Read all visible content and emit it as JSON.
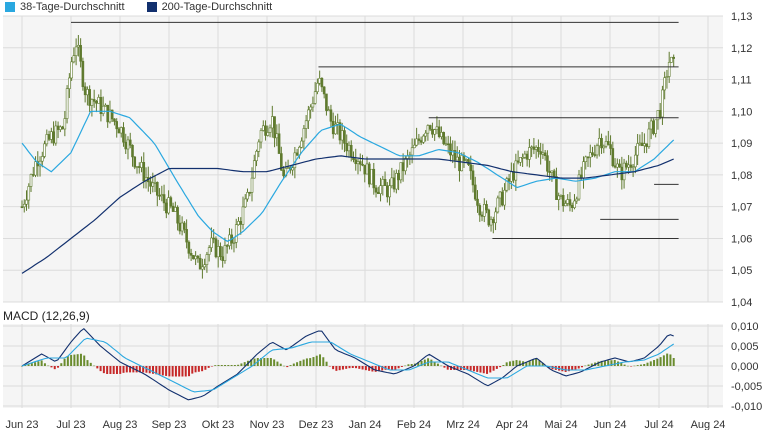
{
  "legend": [
    {
      "name": "38-Tage-Durchschnitt",
      "color": "#2aa8e0"
    },
    {
      "name": "200-Tage-Durchschnitt",
      "color": "#12306e"
    }
  ],
  "macd_title": "MACD (12,26,9)",
  "colors": {
    "bg": "#f5f5f5",
    "grid": "#dcdcdc",
    "candle": "#5f7a2e",
    "ma38": "#2aa8e0",
    "ma200": "#12306e",
    "macd_pos": "#6a8c2e",
    "macd_neg": "#c62828",
    "hline": "#333333"
  },
  "chart_data": [
    {
      "type": "line",
      "x_labels": [
        "Jun 23",
        "Jul 23",
        "Aug 23",
        "Sep 23",
        "Okt 23",
        "Nov 23",
        "Dez 23",
        "Jan 24",
        "Feb 24",
        "Mrz 24",
        "Apr 24",
        "Mai 24",
        "Jun 24",
        "Jul 24",
        "Aug 24"
      ],
      "y_ticks": [
        "1,04",
        "1,05",
        "1,06",
        "1,07",
        "1,08",
        "1,09",
        "1,10",
        "1,11",
        "1,12",
        "1,13"
      ],
      "ylim": [
        1.04,
        1.13
      ],
      "price_anchors": [
        {
          "m": 0.0,
          "v": 1.07
        },
        {
          "m": 0.3,
          "v": 1.085
        },
        {
          "m": 0.6,
          "v": 1.092
        },
        {
          "m": 0.85,
          "v": 1.095
        },
        {
          "m": 1.0,
          "v": 1.115
        },
        {
          "m": 1.1,
          "v": 1.122
        },
        {
          "m": 1.3,
          "v": 1.106
        },
        {
          "m": 1.7,
          "v": 1.1
        },
        {
          "m": 2.0,
          "v": 1.095
        },
        {
          "m": 2.3,
          "v": 1.085
        },
        {
          "m": 2.7,
          "v": 1.075
        },
        {
          "m": 3.1,
          "v": 1.068
        },
        {
          "m": 3.4,
          "v": 1.058
        },
        {
          "m": 3.6,
          "v": 1.051
        },
        {
          "m": 3.85,
          "v": 1.058
        },
        {
          "m": 4.1,
          "v": 1.055
        },
        {
          "m": 4.3,
          "v": 1.06
        },
        {
          "m": 4.6,
          "v": 1.072
        },
        {
          "m": 4.85,
          "v": 1.093
        },
        {
          "m": 5.1,
          "v": 1.098
        },
        {
          "m": 5.35,
          "v": 1.078
        },
        {
          "m": 5.6,
          "v": 1.088
        },
        {
          "m": 5.9,
          "v": 1.102
        },
        {
          "m": 6.05,
          "v": 1.11
        },
        {
          "m": 6.3,
          "v": 1.097
        },
        {
          "m": 6.6,
          "v": 1.09
        },
        {
          "m": 6.9,
          "v": 1.085
        },
        {
          "m": 7.2,
          "v": 1.077
        },
        {
          "m": 7.5,
          "v": 1.075
        },
        {
          "m": 7.8,
          "v": 1.083
        },
        {
          "m": 8.0,
          "v": 1.088
        },
        {
          "m": 8.3,
          "v": 1.097
        },
        {
          "m": 8.6,
          "v": 1.09
        },
        {
          "m": 8.9,
          "v": 1.084
        },
        {
          "m": 9.1,
          "v": 1.082
        },
        {
          "m": 9.35,
          "v": 1.07
        },
        {
          "m": 9.55,
          "v": 1.066
        },
        {
          "m": 9.8,
          "v": 1.073
        },
        {
          "m": 10.0,
          "v": 1.08
        },
        {
          "m": 10.3,
          "v": 1.087
        },
        {
          "m": 10.6,
          "v": 1.089
        },
        {
          "m": 10.85,
          "v": 1.077
        },
        {
          "m": 11.0,
          "v": 1.072
        },
        {
          "m": 11.2,
          "v": 1.07
        },
        {
          "m": 11.5,
          "v": 1.083
        },
        {
          "m": 11.8,
          "v": 1.092
        },
        {
          "m": 12.0,
          "v": 1.088
        },
        {
          "m": 12.2,
          "v": 1.08
        },
        {
          "m": 12.45,
          "v": 1.085
        },
        {
          "m": 12.7,
          "v": 1.09
        },
        {
          "m": 12.9,
          "v": 1.096
        },
        {
          "m": 13.05,
          "v": 1.102
        },
        {
          "m": 13.2,
          "v": 1.116
        },
        {
          "m": 13.3,
          "v": 1.114
        }
      ],
      "ma38_anchors": [
        {
          "m": 0.0,
          "v": 1.09
        },
        {
          "m": 0.3,
          "v": 1.084
        },
        {
          "m": 0.6,
          "v": 1.081
        },
        {
          "m": 1.0,
          "v": 1.087
        },
        {
          "m": 1.4,
          "v": 1.1
        },
        {
          "m": 1.8,
          "v": 1.1
        },
        {
          "m": 2.2,
          "v": 1.098
        },
        {
          "m": 2.7,
          "v": 1.09
        },
        {
          "m": 3.2,
          "v": 1.077
        },
        {
          "m": 3.6,
          "v": 1.067
        },
        {
          "m": 3.9,
          "v": 1.062
        },
        {
          "m": 4.2,
          "v": 1.059
        },
        {
          "m": 4.5,
          "v": 1.062
        },
        {
          "m": 4.9,
          "v": 1.068
        },
        {
          "m": 5.3,
          "v": 1.078
        },
        {
          "m": 5.7,
          "v": 1.087
        },
        {
          "m": 6.1,
          "v": 1.094
        },
        {
          "m": 6.5,
          "v": 1.096
        },
        {
          "m": 6.9,
          "v": 1.092
        },
        {
          "m": 7.3,
          "v": 1.089
        },
        {
          "m": 7.7,
          "v": 1.086
        },
        {
          "m": 8.1,
          "v": 1.086
        },
        {
          "m": 8.5,
          "v": 1.088
        },
        {
          "m": 8.9,
          "v": 1.087
        },
        {
          "m": 9.3,
          "v": 1.084
        },
        {
          "m": 9.7,
          "v": 1.08
        },
        {
          "m": 10.1,
          "v": 1.076
        },
        {
          "m": 10.5,
          "v": 1.078
        },
        {
          "m": 10.9,
          "v": 1.079
        },
        {
          "m": 11.3,
          "v": 1.078
        },
        {
          "m": 11.7,
          "v": 1.079
        },
        {
          "m": 12.1,
          "v": 1.081
        },
        {
          "m": 12.5,
          "v": 1.081
        },
        {
          "m": 12.9,
          "v": 1.085
        },
        {
          "m": 13.3,
          "v": 1.091
        }
      ],
      "ma200_anchors": [
        {
          "m": 0.0,
          "v": 1.049
        },
        {
          "m": 0.5,
          "v": 1.054
        },
        {
          "m": 1.0,
          "v": 1.06
        },
        {
          "m": 1.5,
          "v": 1.066
        },
        {
          "m": 2.0,
          "v": 1.073
        },
        {
          "m": 2.5,
          "v": 1.078
        },
        {
          "m": 3.0,
          "v": 1.082
        },
        {
          "m": 3.5,
          "v": 1.082
        },
        {
          "m": 4.0,
          "v": 1.082
        },
        {
          "m": 4.5,
          "v": 1.081
        },
        {
          "m": 5.0,
          "v": 1.081
        },
        {
          "m": 5.5,
          "v": 1.083
        },
        {
          "m": 6.0,
          "v": 1.085
        },
        {
          "m": 6.5,
          "v": 1.086
        },
        {
          "m": 7.0,
          "v": 1.085
        },
        {
          "m": 7.5,
          "v": 1.085
        },
        {
          "m": 8.0,
          "v": 1.085
        },
        {
          "m": 8.5,
          "v": 1.085
        },
        {
          "m": 9.0,
          "v": 1.084
        },
        {
          "m": 9.5,
          "v": 1.083
        },
        {
          "m": 10.0,
          "v": 1.081
        },
        {
          "m": 10.5,
          "v": 1.08
        },
        {
          "m": 11.0,
          "v": 1.079
        },
        {
          "m": 11.5,
          "v": 1.079
        },
        {
          "m": 12.0,
          "v": 1.08
        },
        {
          "m": 12.5,
          "v": 1.081
        },
        {
          "m": 13.0,
          "v": 1.083
        },
        {
          "m": 13.3,
          "v": 1.085
        }
      ],
      "horizontal_lines": [
        {
          "from": 1.0,
          "to": 13.4,
          "v": 1.128
        },
        {
          "from": 6.05,
          "to": 13.4,
          "v": 1.114
        },
        {
          "from": 8.3,
          "to": 13.4,
          "v": 1.098
        },
        {
          "from": 12.9,
          "to": 13.4,
          "v": 1.077
        },
        {
          "from": 11.8,
          "to": 13.4,
          "v": 1.066
        },
        {
          "from": 9.6,
          "to": 13.4,
          "v": 1.06
        }
      ]
    },
    {
      "type": "line",
      "title": "MACD (12,26,9)",
      "y_ticks": [
        "-0,010",
        "-0,005",
        "0,000",
        "0,005",
        "0,010"
      ],
      "ylim": [
        -0.0105,
        0.0105
      ],
      "macd_anchors": [
        {
          "m": 0.0,
          "v": 0.0
        },
        {
          "m": 0.4,
          "v": 0.003
        },
        {
          "m": 0.7,
          "v": 0.001
        },
        {
          "m": 1.0,
          "v": 0.006
        },
        {
          "m": 1.25,
          "v": 0.0095
        },
        {
          "m": 1.6,
          "v": 0.005
        },
        {
          "m": 2.0,
          "v": 0.001
        },
        {
          "m": 2.5,
          "v": -0.002
        },
        {
          "m": 3.0,
          "v": -0.006
        },
        {
          "m": 3.4,
          "v": -0.0085
        },
        {
          "m": 3.7,
          "v": -0.0075
        },
        {
          "m": 4.0,
          "v": -0.005
        },
        {
          "m": 4.4,
          "v": -0.002
        },
        {
          "m": 4.8,
          "v": 0.003
        },
        {
          "m": 5.1,
          "v": 0.006
        },
        {
          "m": 5.4,
          "v": 0.004
        },
        {
          "m": 5.8,
          "v": 0.0075
        },
        {
          "m": 6.1,
          "v": 0.009
        },
        {
          "m": 6.4,
          "v": 0.004
        },
        {
          "m": 6.8,
          "v": 0.002
        },
        {
          "m": 7.2,
          "v": -0.001
        },
        {
          "m": 7.6,
          "v": -0.002
        },
        {
          "m": 8.0,
          "v": 0.0
        },
        {
          "m": 8.3,
          "v": 0.003
        },
        {
          "m": 8.7,
          "v": 0.0
        },
        {
          "m": 9.1,
          "v": -0.002
        },
        {
          "m": 9.5,
          "v": -0.005
        },
        {
          "m": 9.8,
          "v": -0.003
        },
        {
          "m": 10.1,
          "v": 0.0
        },
        {
          "m": 10.5,
          "v": 0.002
        },
        {
          "m": 10.8,
          "v": -0.001
        },
        {
          "m": 11.1,
          "v": -0.0025
        },
        {
          "m": 11.4,
          "v": -0.0015
        },
        {
          "m": 11.8,
          "v": 0.001
        },
        {
          "m": 12.1,
          "v": 0.002
        },
        {
          "m": 12.4,
          "v": 0.001
        },
        {
          "m": 12.7,
          "v": 0.002
        },
        {
          "m": 13.0,
          "v": 0.005
        },
        {
          "m": 13.2,
          "v": 0.008
        },
        {
          "m": 13.3,
          "v": 0.0075
        }
      ],
      "signal_anchors": [
        {
          "m": 0.0,
          "v": 0.0
        },
        {
          "m": 0.5,
          "v": 0.002
        },
        {
          "m": 0.9,
          "v": 0.002
        },
        {
          "m": 1.3,
          "v": 0.007
        },
        {
          "m": 1.7,
          "v": 0.006
        },
        {
          "m": 2.1,
          "v": 0.002
        },
        {
          "m": 2.6,
          "v": -0.001
        },
        {
          "m": 3.1,
          "v": -0.004
        },
        {
          "m": 3.5,
          "v": -0.0065
        },
        {
          "m": 3.9,
          "v": -0.006
        },
        {
          "m": 4.3,
          "v": -0.003
        },
        {
          "m": 4.7,
          "v": 0.0
        },
        {
          "m": 5.1,
          "v": 0.004
        },
        {
          "m": 5.5,
          "v": 0.0045
        },
        {
          "m": 5.9,
          "v": 0.006
        },
        {
          "m": 6.3,
          "v": 0.006
        },
        {
          "m": 6.7,
          "v": 0.003
        },
        {
          "m": 7.1,
          "v": 0.001
        },
        {
          "m": 7.5,
          "v": -0.001
        },
        {
          "m": 7.9,
          "v": -0.001
        },
        {
          "m": 8.3,
          "v": 0.001
        },
        {
          "m": 8.7,
          "v": 0.001
        },
        {
          "m": 9.1,
          "v": -0.001
        },
        {
          "m": 9.5,
          "v": -0.003
        },
        {
          "m": 9.9,
          "v": -0.003
        },
        {
          "m": 10.3,
          "v": 0.0
        },
        {
          "m": 10.7,
          "v": 0.0
        },
        {
          "m": 11.1,
          "v": -0.001
        },
        {
          "m": 11.5,
          "v": -0.001
        },
        {
          "m": 11.9,
          "v": 0.0
        },
        {
          "m": 12.3,
          "v": 0.001
        },
        {
          "m": 12.7,
          "v": 0.0015
        },
        {
          "m": 13.0,
          "v": 0.003
        },
        {
          "m": 13.3,
          "v": 0.0055
        }
      ]
    }
  ]
}
